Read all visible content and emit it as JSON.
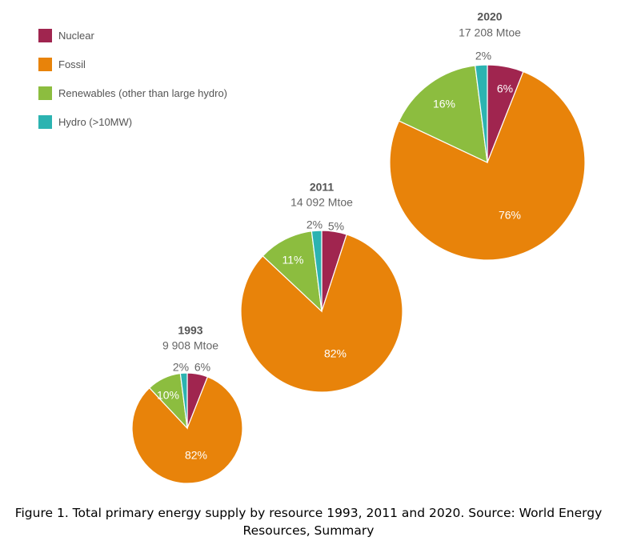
{
  "chart_data": {
    "type": "pie",
    "categories": [
      "Nuclear",
      "Fossil",
      "Renewables (other than large hydro)",
      "Hydro (>10MW)"
    ],
    "colors": {
      "Nuclear": "#a0254f",
      "Fossil": "#e8830a",
      "Renewables (other than large hydro)": "#8cbd3f",
      "Hydro (>10MW)": "#2cb3b1"
    },
    "pies": [
      {
        "year": "1993",
        "total": "9 908 Mtoe",
        "slices": [
          {
            "category": "Nuclear",
            "value": 6,
            "label": "6%"
          },
          {
            "category": "Fossil",
            "value": 82,
            "label": "82%"
          },
          {
            "category": "Renewables (other than large hydro)",
            "value": 10,
            "label": "10%"
          },
          {
            "category": "Hydro (>10MW)",
            "value": 2,
            "label": "2%"
          }
        ]
      },
      {
        "year": "2011",
        "total": "14 092 Mtoe",
        "slices": [
          {
            "category": "Nuclear",
            "value": 5,
            "label": "5%"
          },
          {
            "category": "Fossil",
            "value": 82,
            "label": "82%"
          },
          {
            "category": "Renewables (other than large hydro)",
            "value": 11,
            "label": "11%"
          },
          {
            "category": "Hydro (>10MW)",
            "value": 2,
            "label": "2%"
          }
        ]
      },
      {
        "year": "2020",
        "total": "17 208 Mtoe",
        "slices": [
          {
            "category": "Nuclear",
            "value": 6,
            "label": "6%"
          },
          {
            "category": "Fossil",
            "value": 76,
            "label": "76%"
          },
          {
            "category": "Renewables (other than large hydro)",
            "value": 16,
            "label": "16%"
          },
          {
            "category": "Hydro (>10MW)",
            "value": 2,
            "label": "2%"
          }
        ]
      }
    ]
  },
  "legend": [
    {
      "label": "Nuclear"
    },
    {
      "label": "Fossil"
    },
    {
      "label": "Renewables (other than large hydro)"
    },
    {
      "label": "Hydro (>10MW)"
    }
  ],
  "caption": "Figure 1. Total primary energy supply by resource 1993, 2011 and 2020. Source: World Energy Resources, Summary"
}
